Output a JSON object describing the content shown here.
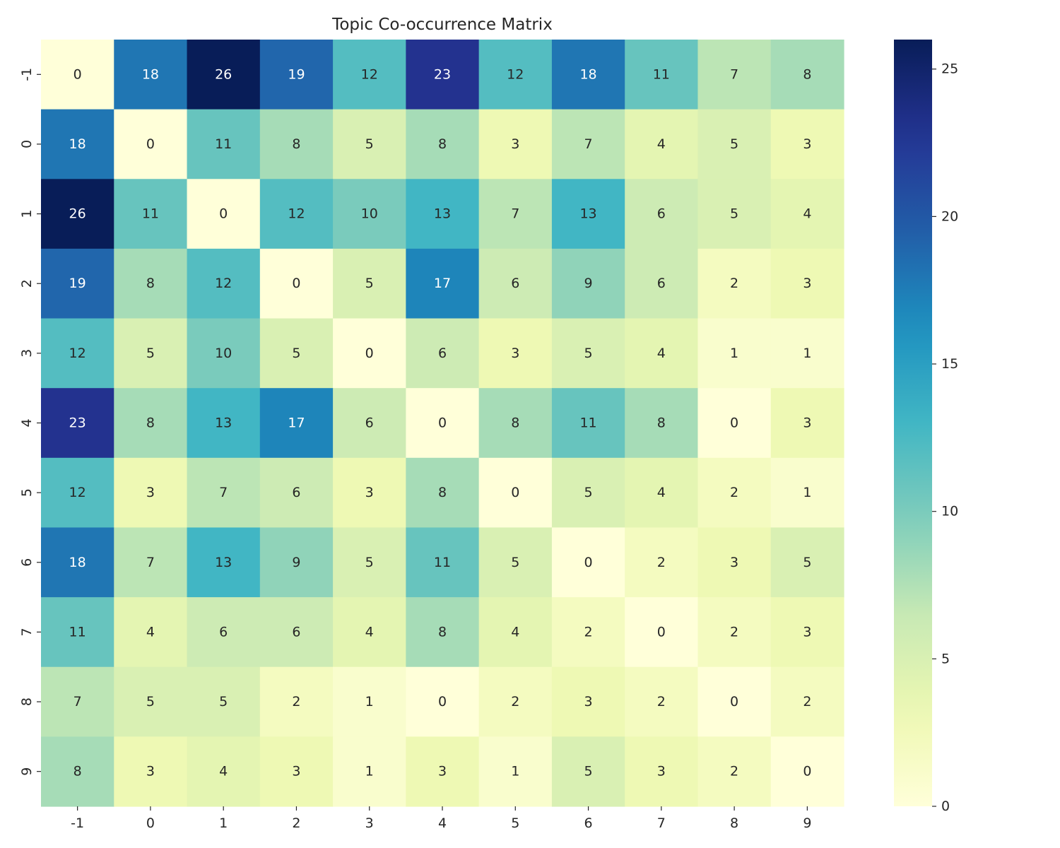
{
  "chart_data": {
    "type": "heatmap",
    "title": "Topic Co-occurrence Matrix",
    "xlabel": "",
    "ylabel": "",
    "x_labels": [
      "-1",
      "0",
      "1",
      "2",
      "3",
      "4",
      "5",
      "6",
      "7",
      "8",
      "9"
    ],
    "y_labels": [
      "-1",
      "0",
      "1",
      "2",
      "3",
      "4",
      "5",
      "6",
      "7",
      "8",
      "9"
    ],
    "values": [
      [
        0,
        18,
        26,
        19,
        12,
        23,
        12,
        18,
        11,
        7,
        8
      ],
      [
        18,
        0,
        11,
        8,
        5,
        8,
        3,
        7,
        4,
        5,
        3
      ],
      [
        26,
        11,
        0,
        12,
        10,
        13,
        7,
        13,
        6,
        5,
        4
      ],
      [
        19,
        8,
        12,
        0,
        5,
        17,
        6,
        9,
        6,
        2,
        3
      ],
      [
        12,
        5,
        10,
        5,
        0,
        6,
        3,
        5,
        4,
        1,
        1
      ],
      [
        23,
        8,
        13,
        17,
        6,
        0,
        8,
        11,
        8,
        0,
        3
      ],
      [
        12,
        3,
        7,
        6,
        3,
        8,
        0,
        5,
        4,
        2,
        1
      ],
      [
        18,
        7,
        13,
        9,
        5,
        11,
        5,
        0,
        2,
        3,
        5
      ],
      [
        11,
        4,
        6,
        6,
        4,
        8,
        4,
        2,
        0,
        2,
        3
      ],
      [
        7,
        5,
        5,
        2,
        1,
        0,
        2,
        3,
        2,
        0,
        2
      ],
      [
        8,
        3,
        4,
        3,
        1,
        3,
        1,
        5,
        3,
        2,
        0
      ]
    ],
    "colormap": "YlGnBu",
    "value_range": [
      0,
      26
    ],
    "colorbar_ticks": [
      0,
      5,
      10,
      15,
      20,
      25
    ],
    "annotated": true,
    "grid": false
  }
}
